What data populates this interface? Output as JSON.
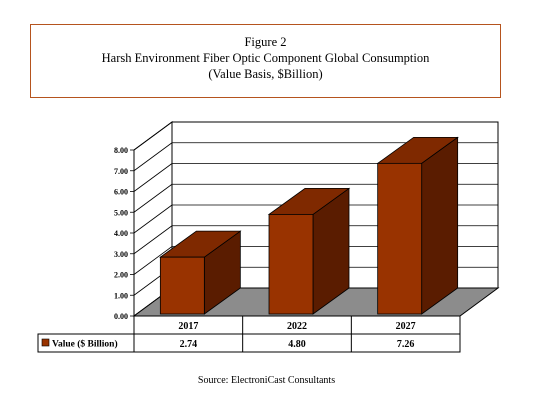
{
  "header": {
    "figure_label": "Figure 2",
    "title": "Harsh Environment Fiber Optic Component Global Consumption",
    "subtitle": "(Value Basis, $Billion)"
  },
  "source": "Source: ElectroniCast Consultants",
  "colors": {
    "bar_front": "#993300",
    "bar_side": "#5a1c00",
    "bar_top": "#7f2900",
    "floor": "#8c8c8c",
    "frame_border": "#b5541e"
  },
  "chart_data": {
    "type": "bar",
    "three_d": true,
    "categories": [
      "2017",
      "2022",
      "2027"
    ],
    "series": [
      {
        "name": "Value ($ Billion)",
        "values": [
          2.74,
          4.8,
          7.26
        ],
        "value_labels": [
          "2.74",
          "4.80",
          "7.26"
        ]
      }
    ],
    "ylim": [
      0,
      8
    ],
    "y_ticks": [
      0,
      1,
      2,
      3,
      4,
      5,
      6,
      7,
      8
    ],
    "y_tick_labels": [
      "0.00",
      "1.00",
      "2.00",
      "3.00",
      "4.00",
      "5.00",
      "6.00",
      "7.00",
      "8.00"
    ],
    "grid": true,
    "legend": "data-table below chart",
    "title": "Harsh Environment Fiber Optic Component Global Consumption",
    "xlabel": "",
    "ylabel": ""
  }
}
